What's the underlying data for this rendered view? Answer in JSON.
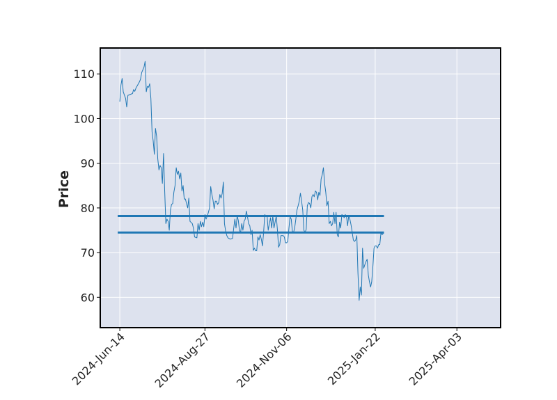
{
  "chart_data": {
    "type": "line",
    "title": "",
    "xlabel": "",
    "ylabel": "Price",
    "ylim": [
      53.2,
      115.8
    ],
    "xlim": [
      "2024-05-28",
      "2025-05-11"
    ],
    "y_ticks": [
      60,
      70,
      80,
      90,
      100,
      110
    ],
    "x_ticks": [
      "2024-Jun-14",
      "2024-Aug-27",
      "2024-Nov-06",
      "2025-Jan-22",
      "2025-Apr-03"
    ],
    "x_tick_dates": [
      "2024-06-14",
      "2024-08-27",
      "2024-11-06",
      "2025-01-22",
      "2025-04-03"
    ],
    "grid": true,
    "background": "#dde2ee",
    "line_color": "#1f77b4",
    "horizontal_lines": [
      78.2,
      74.5
    ],
    "series": [
      {
        "values": [
          [
            "2024-06-14",
            103.8
          ],
          [
            "2024-06-15",
            107.5
          ],
          [
            "2024-06-16",
            109.0
          ],
          [
            "2024-06-17",
            106.0
          ],
          [
            "2024-06-19",
            104.5
          ],
          [
            "2024-06-20",
            102.6
          ],
          [
            "2024-06-21",
            105.2
          ],
          [
            "2024-06-24",
            105.5
          ],
          [
            "2024-06-25",
            105.6
          ],
          [
            "2024-06-26",
            106.5
          ],
          [
            "2024-06-27",
            106.1
          ],
          [
            "2024-06-28",
            106.8
          ],
          [
            "2024-07-01",
            108.2
          ],
          [
            "2024-07-02",
            108.8
          ],
          [
            "2024-07-03",
            110.3
          ],
          [
            "2024-07-05",
            111.5
          ],
          [
            "2024-07-06",
            112.8
          ],
          [
            "2024-07-07",
            106.0
          ],
          [
            "2024-07-08",
            107.2
          ],
          [
            "2024-07-09",
            107.0
          ],
          [
            "2024-07-10",
            107.8
          ],
          [
            "2024-07-11",
            104.5
          ],
          [
            "2024-07-12",
            97.0
          ],
          [
            "2024-07-13",
            95.0
          ],
          [
            "2024-07-14",
            92.0
          ],
          [
            "2024-07-15",
            97.8
          ],
          [
            "2024-07-16",
            96.0
          ],
          [
            "2024-07-17",
            91.0
          ],
          [
            "2024-07-18",
            88.5
          ],
          [
            "2024-07-19",
            89.5
          ],
          [
            "2024-07-20",
            89.0
          ],
          [
            "2024-07-21",
            85.5
          ],
          [
            "2024-07-22",
            92.2
          ],
          [
            "2024-07-23",
            84.0
          ],
          [
            "2024-07-24",
            76.5
          ],
          [
            "2024-07-25",
            77.5
          ],
          [
            "2024-07-26",
            77.0
          ],
          [
            "2024-07-27",
            75.0
          ],
          [
            "2024-07-28",
            79.5
          ],
          [
            "2024-07-29",
            80.8
          ],
          [
            "2024-07-30",
            81.0
          ],
          [
            "2024-07-31",
            83.5
          ],
          [
            "2024-08-01",
            85.0
          ],
          [
            "2024-08-02",
            89.0
          ],
          [
            "2024-08-03",
            87.5
          ],
          [
            "2024-08-04",
            88.2
          ],
          [
            "2024-08-05",
            86.5
          ],
          [
            "2024-08-06",
            87.8
          ],
          [
            "2024-08-07",
            83.8
          ],
          [
            "2024-08-08",
            85.0
          ],
          [
            "2024-08-09",
            82.0
          ],
          [
            "2024-08-10",
            82.0
          ],
          [
            "2024-08-11",
            81.0
          ],
          [
            "2024-08-12",
            80.0
          ],
          [
            "2024-08-13",
            82.2
          ],
          [
            "2024-08-14",
            77.0
          ],
          [
            "2024-08-16",
            76.5
          ],
          [
            "2024-08-17",
            75.5
          ],
          [
            "2024-08-18",
            73.5
          ],
          [
            "2024-08-20",
            73.3
          ],
          [
            "2024-08-21",
            76.5
          ],
          [
            "2024-08-22",
            75.0
          ],
          [
            "2024-08-23",
            77.0
          ],
          [
            "2024-08-24",
            75.8
          ],
          [
            "2024-08-25",
            76.8
          ],
          [
            "2024-08-26",
            75.8
          ],
          [
            "2024-08-27",
            78.5
          ],
          [
            "2024-08-28",
            77.5
          ],
          [
            "2024-08-29",
            78.2
          ],
          [
            "2024-08-30",
            79.0
          ],
          [
            "2024-08-31",
            80.0
          ],
          [
            "2024-09-01",
            84.8
          ],
          [
            "2024-09-02",
            83.0
          ],
          [
            "2024-09-03",
            81.8
          ],
          [
            "2024-09-04",
            79.8
          ],
          [
            "2024-09-05",
            81.5
          ],
          [
            "2024-09-06",
            81.5
          ],
          [
            "2024-09-07",
            80.8
          ],
          [
            "2024-09-08",
            81.2
          ],
          [
            "2024-09-09",
            83.0
          ],
          [
            "2024-09-10",
            82.2
          ],
          [
            "2024-09-11",
            83.2
          ],
          [
            "2024-09-12",
            85.8
          ],
          [
            "2024-09-13",
            76.5
          ],
          [
            "2024-09-14",
            74.8
          ],
          [
            "2024-09-15",
            73.8
          ],
          [
            "2024-09-16",
            73.3
          ],
          [
            "2024-09-18",
            73.0
          ],
          [
            "2024-09-20",
            73.2
          ],
          [
            "2024-09-21",
            75.5
          ],
          [
            "2024-09-22",
            77.5
          ],
          [
            "2024-09-23",
            75.5
          ],
          [
            "2024-09-24",
            78.2
          ],
          [
            "2024-09-25",
            77.2
          ],
          [
            "2024-09-26",
            75.0
          ],
          [
            "2024-09-27",
            74.5
          ],
          [
            "2024-09-28",
            76.5
          ],
          [
            "2024-09-29",
            75.0
          ],
          [
            "2024-09-30",
            77.0
          ],
          [
            "2024-10-01",
            77.5
          ],
          [
            "2024-10-02",
            79.3
          ],
          [
            "2024-10-03",
            78.0
          ],
          [
            "2024-10-04",
            76.5
          ],
          [
            "2024-10-05",
            76.0
          ],
          [
            "2024-10-06",
            74.0
          ],
          [
            "2024-10-07",
            75.0
          ],
          [
            "2024-10-08",
            70.5
          ],
          [
            "2024-10-09",
            71.0
          ],
          [
            "2024-10-10",
            70.4
          ],
          [
            "2024-10-11",
            70.4
          ],
          [
            "2024-10-12",
            73.5
          ],
          [
            "2024-10-13",
            72.8
          ],
          [
            "2024-10-14",
            74.0
          ],
          [
            "2024-10-15",
            73.0
          ],
          [
            "2024-10-16",
            71.5
          ],
          [
            "2024-10-17",
            74.5
          ],
          [
            "2024-10-18",
            78.5
          ],
          [
            "2024-10-19",
            78.2
          ],
          [
            "2024-10-20",
            78.3
          ],
          [
            "2024-10-21",
            75.0
          ],
          [
            "2024-10-22",
            76.5
          ],
          [
            "2024-10-23",
            77.8
          ],
          [
            "2024-10-24",
            75.5
          ],
          [
            "2024-10-25",
            78.2
          ],
          [
            "2024-10-26",
            75.5
          ],
          [
            "2024-10-27",
            76.8
          ],
          [
            "2024-10-28",
            78.2
          ],
          [
            "2024-10-29",
            75.0
          ],
          [
            "2024-10-30",
            71.2
          ],
          [
            "2024-10-31",
            71.8
          ],
          [
            "2024-11-01",
            73.8
          ],
          [
            "2024-11-03",
            73.8
          ],
          [
            "2024-11-04",
            73.5
          ],
          [
            "2024-11-05",
            72.2
          ],
          [
            "2024-11-06",
            72.2
          ],
          [
            "2024-11-07",
            72.5
          ],
          [
            "2024-11-08",
            75.5
          ],
          [
            "2024-11-09",
            78.0
          ],
          [
            "2024-11-10",
            77.5
          ],
          [
            "2024-11-11",
            74.8
          ],
          [
            "2024-11-12",
            74.5
          ],
          [
            "2024-11-13",
            75.5
          ],
          [
            "2024-11-14",
            77.5
          ],
          [
            "2024-11-15",
            79.5
          ],
          [
            "2024-11-16",
            80.5
          ],
          [
            "2024-11-17",
            81.5
          ],
          [
            "2024-11-18",
            83.3
          ],
          [
            "2024-11-19",
            81.5
          ],
          [
            "2024-11-20",
            79.5
          ],
          [
            "2024-11-21",
            75.0
          ],
          [
            "2024-11-22",
            74.5
          ],
          [
            "2024-11-23",
            75.2
          ],
          [
            "2024-11-24",
            80.5
          ],
          [
            "2024-11-25",
            81.2
          ],
          [
            "2024-11-26",
            81.0
          ],
          [
            "2024-11-27",
            80.0
          ],
          [
            "2024-11-28",
            82.5
          ],
          [
            "2024-11-29",
            83.0
          ],
          [
            "2024-11-30",
            82.5
          ],
          [
            "2024-12-01",
            83.8
          ],
          [
            "2024-12-02",
            83.5
          ],
          [
            "2024-12-03",
            81.8
          ],
          [
            "2024-12-04",
            83.5
          ],
          [
            "2024-12-05",
            82.8
          ],
          [
            "2024-12-06",
            86.5
          ],
          [
            "2024-12-07",
            87.5
          ],
          [
            "2024-12-08",
            89.0
          ],
          [
            "2024-12-09",
            85.5
          ],
          [
            "2024-12-10",
            83.5
          ],
          [
            "2024-12-11",
            80.5
          ],
          [
            "2024-12-12",
            81.5
          ],
          [
            "2024-12-13",
            76.5
          ],
          [
            "2024-12-14",
            77.0
          ],
          [
            "2024-12-15",
            76.0
          ],
          [
            "2024-12-16",
            76.5
          ],
          [
            "2024-12-17",
            79.0
          ],
          [
            "2024-12-18",
            76.5
          ],
          [
            "2024-12-19",
            79.0
          ],
          [
            "2024-12-20",
            74.0
          ],
          [
            "2024-12-21",
            73.5
          ],
          [
            "2024-12-22",
            76.8
          ],
          [
            "2024-12-23",
            75.5
          ],
          [
            "2024-12-24",
            78.5
          ],
          [
            "2024-12-25",
            78.3
          ],
          [
            "2024-12-26",
            77.8
          ],
          [
            "2024-12-27",
            78.5
          ],
          [
            "2024-12-28",
            78.2
          ],
          [
            "2024-12-29",
            76.0
          ],
          [
            "2024-12-30",
            78.3
          ],
          [
            "2024-12-31",
            77.5
          ],
          [
            "2025-01-01",
            76.2
          ],
          [
            "2025-01-02",
            74.5
          ],
          [
            "2025-01-03",
            72.8
          ],
          [
            "2025-01-04",
            72.5
          ],
          [
            "2025-01-05",
            72.8
          ],
          [
            "2025-01-06",
            73.8
          ],
          [
            "2025-01-07",
            65.5
          ],
          [
            "2025-01-08",
            59.3
          ],
          [
            "2025-01-09",
            62.3
          ],
          [
            "2025-01-10",
            60.5
          ],
          [
            "2025-01-11",
            71.0
          ],
          [
            "2025-01-12",
            66.5
          ],
          [
            "2025-01-13",
            67.3
          ],
          [
            "2025-01-14",
            68.0
          ],
          [
            "2025-01-15",
            68.5
          ],
          [
            "2025-01-16",
            65.0
          ],
          [
            "2025-01-17",
            63.5
          ],
          [
            "2025-01-18",
            62.3
          ],
          [
            "2025-01-19",
            63.5
          ],
          [
            "2025-01-20",
            67.0
          ],
          [
            "2025-01-21",
            71.0
          ],
          [
            "2025-01-22",
            71.5
          ],
          [
            "2025-01-23",
            71.5
          ],
          [
            "2025-01-24",
            71.0
          ],
          [
            "2025-01-25",
            71.8
          ],
          [
            "2025-01-26",
            71.8
          ],
          [
            "2025-01-27",
            74.5
          ],
          [
            "2025-01-28",
            74.0
          ],
          [
            "2025-01-29",
            74.3
          ]
        ]
      }
    ]
  }
}
